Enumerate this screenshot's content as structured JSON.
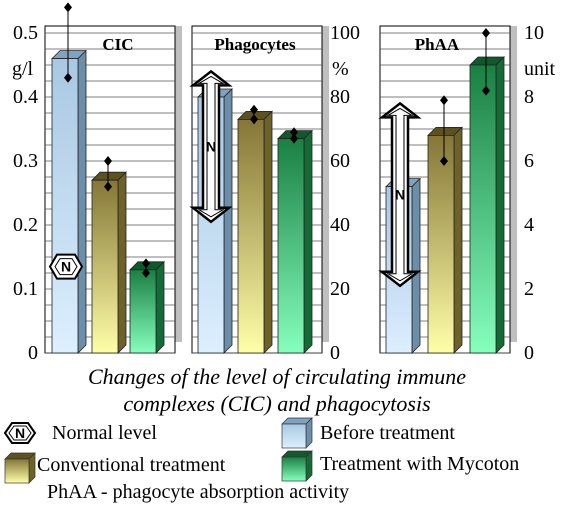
{
  "chart_data": [
    {
      "type": "bar",
      "title": "CIC",
      "unit_label": "g/l",
      "ylim": [
        0,
        0.5
      ],
      "yticks": [
        "0",
        "0.1",
        "0.2",
        "0.3",
        "0.4",
        "0.5"
      ],
      "grid": true,
      "series": [
        {
          "name": "Before treatment",
          "value": 0.46,
          "err_low": 0.43,
          "err_high": 0.54
        },
        {
          "name": "Conventional treatment",
          "value": 0.27,
          "err_low": 0.26,
          "err_high": 0.3
        },
        {
          "name": "Treatment with Mycoton",
          "value": 0.13,
          "err_low": 0.125,
          "err_high": 0.14
        }
      ],
      "normal_range": [
        0.135,
        0.135
      ]
    },
    {
      "type": "bar",
      "title": "Phagocytes",
      "unit_label": "%",
      "ylim": [
        0,
        100
      ],
      "yticks": [
        "0",
        "20",
        "40",
        "60",
        "80",
        "100"
      ],
      "grid": true,
      "series": [
        {
          "name": "Before treatment",
          "value": 80,
          "err_low": 80,
          "err_high": 84
        },
        {
          "name": "Conventional treatment",
          "value": 73,
          "err_low": 73,
          "err_high": 76
        },
        {
          "name": "Treatment with Mycoton",
          "value": 67,
          "err_low": 67,
          "err_high": 69
        }
      ],
      "normal_range": [
        41,
        88
      ]
    },
    {
      "type": "bar",
      "title": "PhAA",
      "unit_label": "unit",
      "ylim": [
        0,
        10
      ],
      "yticks": [
        "0",
        "2",
        "4",
        "6",
        "8",
        "10"
      ],
      "grid": true,
      "series": [
        {
          "name": "Before treatment",
          "value": 5.2,
          "err_low": 5.2,
          "err_high": 5.5
        },
        {
          "name": "Conventional treatment",
          "value": 6.8,
          "err_low": 6.0,
          "err_high": 7.9
        },
        {
          "name": "Treatment with Mycoton",
          "value": 9.0,
          "err_low": 8.2,
          "err_high": 10.0
        }
      ],
      "normal_range": [
        2.1,
        7.8
      ]
    }
  ],
  "normal_label": "N",
  "caption": {
    "line1": "Changes of the level of circulating immune",
    "line2": "complexes (CIC) and phagocytosis"
  },
  "legend": {
    "normal": "Normal level",
    "before": "Before treatment",
    "conventional": "Conventional treatment",
    "mycoton": "Treatment with Mycoton",
    "note": "PhAA - phagocyte absorption activity"
  },
  "colors": {
    "before_top": "#c6e2f7",
    "before_bottom": "#d9ecfa",
    "before_dark": "#7fa3c0",
    "conv_top": "#8a7a3a",
    "conv_bottom": "#ffffa8",
    "conv_dark": "#5c5220",
    "myc_top": "#1e8c4a",
    "myc_bottom": "#7dffb4",
    "myc_dark": "#0f5a2c",
    "panel_shadow": "#bfbfbf",
    "grid": "#555555"
  }
}
